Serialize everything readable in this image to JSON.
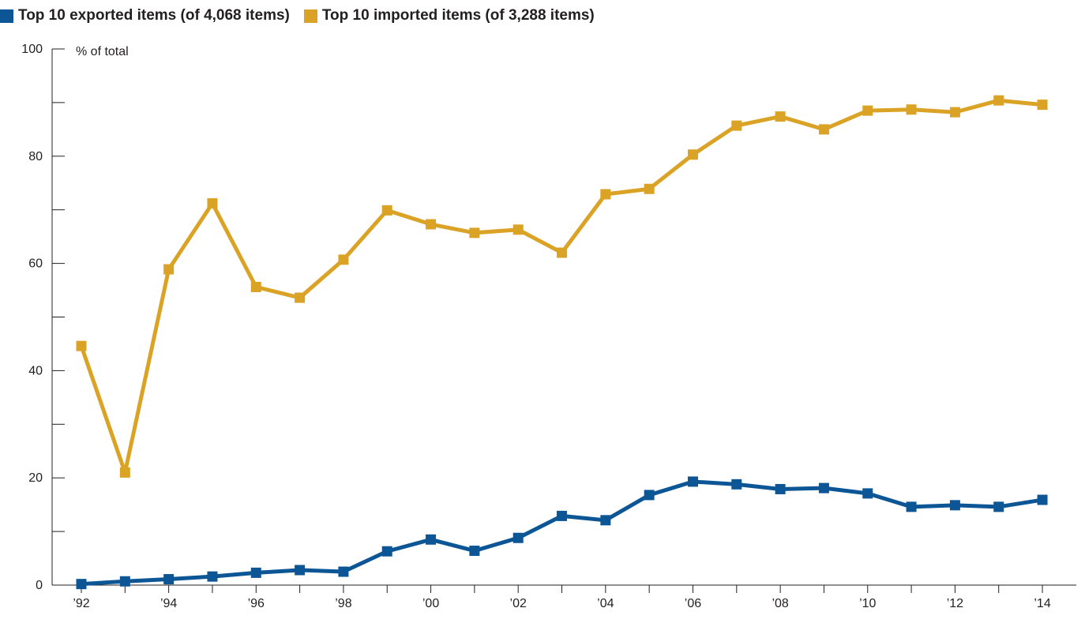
{
  "chart_data": {
    "type": "line",
    "unit_label": "% of total",
    "x": [
      "1992",
      "1993",
      "1994",
      "1995",
      "1996",
      "1997",
      "1998",
      "1999",
      "2000",
      "2001",
      "2002",
      "2003",
      "2004",
      "2005",
      "2006",
      "2007",
      "2008",
      "2009",
      "2010",
      "2011",
      "2012",
      "2013",
      "2014"
    ],
    "x_tick_labels": [
      "’92",
      "’94",
      "’96",
      "’98",
      "’00",
      "’02",
      "’04",
      "’06",
      "’08",
      "’10",
      "’12",
      "’14"
    ],
    "y_tick_labels": [
      "0",
      "20",
      "40",
      "60",
      "80",
      "100"
    ],
    "ylim": [
      0,
      100
    ],
    "y_major_ticks": [
      0,
      20,
      40,
      60,
      80,
      100
    ],
    "y_minor_ticks": [
      10,
      30,
      50,
      70,
      90
    ],
    "grid": false,
    "legend_position": "top-left",
    "series": [
      {
        "name": "Top 10 exported items (of 4,068 items)",
        "color": "#0d5696",
        "values": [
          0.2,
          0.7,
          1.1,
          1.6,
          2.3,
          2.8,
          2.5,
          6.3,
          8.5,
          6.4,
          8.8,
          12.9,
          12.1,
          16.8,
          19.3,
          18.8,
          17.9,
          18.1,
          17.1,
          14.6,
          14.9,
          14.6,
          15.9
        ]
      },
      {
        "name": "Top 10 imported items (of 3,288 items)",
        "color": "#dba325",
        "values": [
          44.6,
          21.0,
          58.9,
          71.2,
          55.6,
          53.6,
          60.7,
          69.9,
          67.3,
          65.7,
          66.3,
          62.0,
          72.9,
          73.9,
          80.3,
          85.7,
          87.4,
          85.0,
          88.5,
          88.7,
          88.2,
          90.4,
          89.6
        ]
      }
    ]
  }
}
